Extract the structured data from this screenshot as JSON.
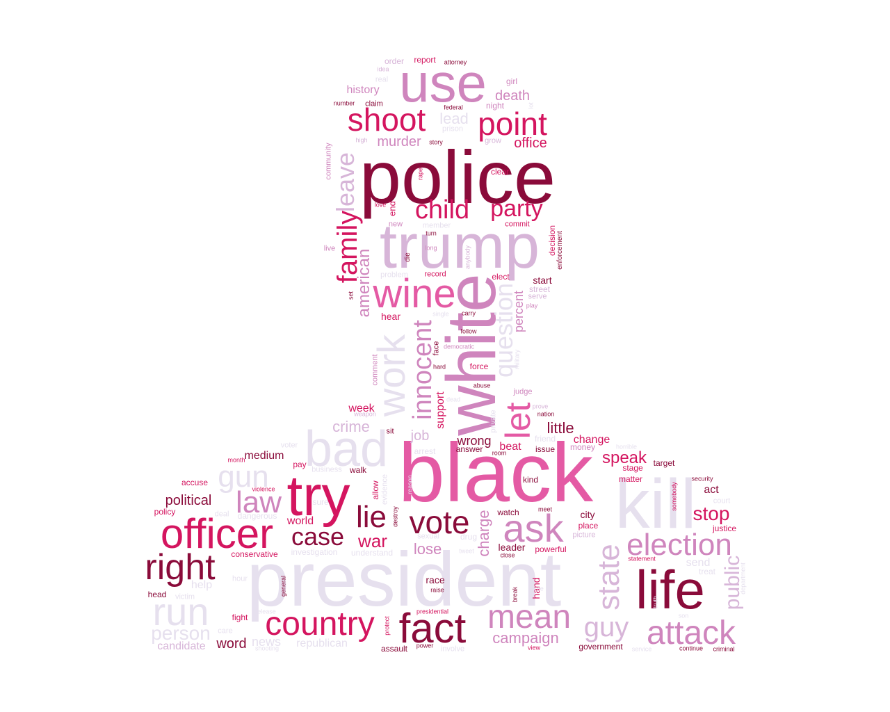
{
  "palette": {
    "maroon": "#8a0b3a",
    "crimson": "#d4155f",
    "pink": "#e45aa4",
    "mauve": "#cf85bd",
    "lilac": "#d7b5d8",
    "pale": "#e6e0ee"
  },
  "words": [
    "police",
    "use",
    "shoot",
    "point",
    "child",
    "party",
    "trump",
    "wine",
    "white",
    "family",
    "leave",
    "work",
    "innocent",
    "question",
    "let",
    "black",
    "kill",
    "bad",
    "try",
    "president",
    "officer",
    "right",
    "gun",
    "law",
    "lie",
    "vote",
    "ask",
    "case",
    "war",
    "life",
    "election",
    "state",
    "attack",
    "fact",
    "country",
    "mean",
    "run",
    "guy",
    "campaign",
    "person",
    "candidate",
    "word",
    "news",
    "republican",
    "crime",
    "job",
    "wrong",
    "little",
    "speak",
    "stop",
    "public",
    "lose",
    "charge",
    "american",
    "percent",
    "murder",
    "office",
    "lead",
    "death",
    "history",
    "order",
    "report",
    "attorney",
    "idea",
    "real",
    "girl",
    "night",
    "number",
    "claim",
    "federal",
    "prison",
    "high",
    "story",
    "grow",
    "community",
    "clear",
    "rape",
    "love",
    "end",
    "new",
    "member",
    "commit",
    "decision",
    "enforcement",
    "live",
    "long",
    "turn",
    "anybody",
    "die",
    "problem",
    "record",
    "elect",
    "street",
    "serve",
    "set",
    "start",
    "play",
    "hear",
    "single",
    "carry",
    "follow",
    "democratic",
    "face",
    "hard",
    "military",
    "comment",
    "force",
    "abuse",
    "dead",
    "judge",
    "prove",
    "nation",
    "weapon",
    "week",
    "sit",
    "support",
    "private",
    "beat",
    "friend",
    "issue",
    "change",
    "money",
    "arrest",
    "answer",
    "room",
    "horrible",
    "month",
    "voter",
    "medium",
    "pay",
    "business",
    "walk",
    "allow",
    "evidence",
    "reason",
    "stage",
    "matter",
    "target",
    "accuse",
    "violence",
    "sure",
    "destroy",
    "kind",
    "security",
    "somebody",
    "court",
    "political",
    "policy",
    "deal",
    "dangerous",
    "world",
    "watch",
    "meet",
    "city",
    "place",
    "picture",
    "act",
    "justice",
    "conservative",
    "investigation",
    "understand",
    "sexual",
    "drug",
    "tweet",
    "leader",
    "close",
    "powerful",
    "statement",
    "send",
    "treat",
    "department",
    "help",
    "hour",
    "general",
    "race",
    "raise",
    "break",
    "hand",
    "head",
    "victim",
    "fight",
    "release",
    "presidential",
    "protect",
    "care",
    "shooting",
    "assault",
    "power",
    "involve",
    "view",
    "government",
    "service",
    "continue",
    "criminal",
    "son",
    "free",
    "truth",
    "lot"
  ]
}
